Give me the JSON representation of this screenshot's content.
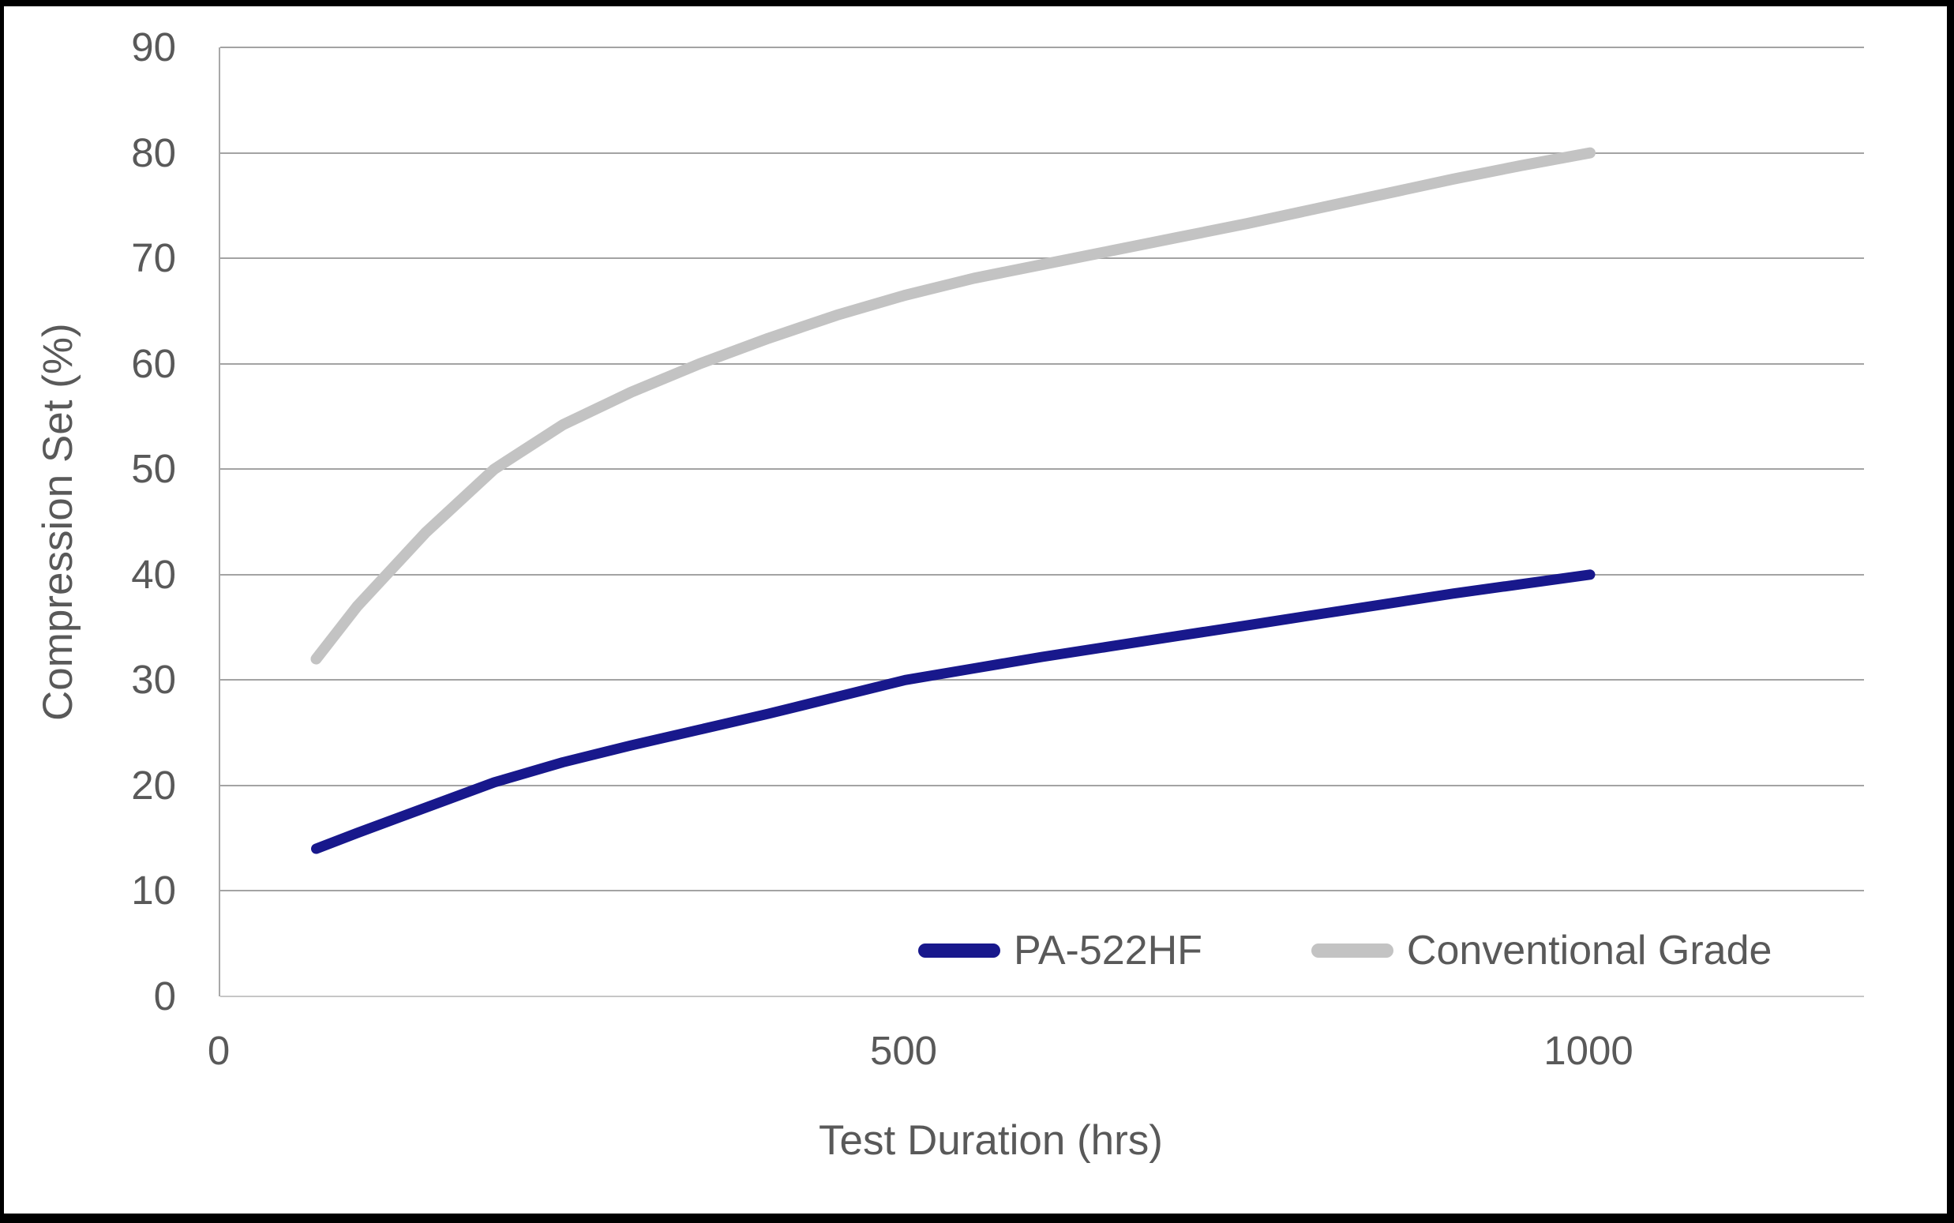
{
  "colors": {
    "background": "#ffffff",
    "outer_border": "#000000",
    "grid_color": "#a3a3a3",
    "axis_line_color": "#c6c6c6",
    "text_color": "#595959",
    "series_navy": "#18188C",
    "series_gray": "#C3C3C3"
  },
  "chart_data": {
    "type": "line",
    "title": "",
    "xlabel": "Test Duration (hrs)",
    "ylabel": "Compression Set (%)",
    "xlim": [
      0,
      1200
    ],
    "ylim": [
      0,
      90
    ],
    "xticks": [
      0,
      500,
      1000
    ],
    "yticks": [
      0,
      10,
      20,
      30,
      40,
      50,
      60,
      70,
      80,
      90
    ],
    "grid": "horizontal-only",
    "legend_position": "inside-bottom-right",
    "series": [
      {
        "name": "PA-522HF",
        "color": "#18188C",
        "line_width": 13,
        "x": [
          70,
          100,
          150,
          200,
          250,
          300,
          350,
          400,
          450,
          500,
          550,
          600,
          650,
          700,
          750,
          800,
          850,
          900,
          950,
          1000
        ],
        "y": [
          14,
          15.5,
          17.9,
          20.3,
          22.2,
          23.8,
          25.3,
          26.8,
          28.4,
          30,
          31.1,
          32.2,
          33.2,
          34.2,
          35.2,
          36.2,
          37.2,
          38.2,
          39.1,
          40
        ]
      },
      {
        "name": "Conventional Grade",
        "color": "#C3C3C3",
        "line_width": 14,
        "x": [
          70,
          100,
          150,
          200,
          250,
          300,
          350,
          400,
          450,
          500,
          550,
          600,
          650,
          700,
          750,
          800,
          850,
          900,
          950,
          1000
        ],
        "y": [
          32,
          37,
          44,
          50,
          54.2,
          57.3,
          60,
          62.4,
          64.6,
          66.5,
          68.1,
          69.4,
          70.7,
          72,
          73.3,
          74.7,
          76.1,
          77.5,
          78.8,
          80
        ]
      }
    ]
  }
}
